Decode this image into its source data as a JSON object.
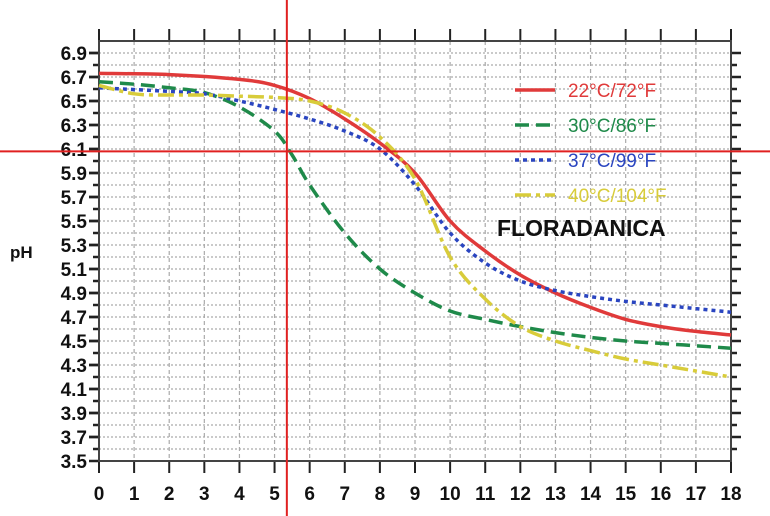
{
  "chart_data": {
    "type": "line",
    "title": "",
    "xlabel": "",
    "ylabel": "pH",
    "xlim": [
      0,
      18
    ],
    "ylim": [
      3.5,
      7.0
    ],
    "x_ticks": [
      0,
      1,
      2,
      3,
      4,
      5,
      6,
      7,
      8,
      9,
      10,
      11,
      12,
      13,
      14,
      15,
      16,
      17,
      18
    ],
    "y_ticks": [
      "3.5",
      "3.7",
      "3.9",
      "4.1",
      "4.3",
      "4.5",
      "4.7",
      "4.9",
      "5.1",
      "5.3",
      "5.5",
      "5.7",
      "5.9",
      "6.1",
      "6.3",
      "6.5",
      "6.7",
      "6.9"
    ],
    "grid": true,
    "legend_position": "top-right",
    "annotation": "FLORADANICA",
    "crosshair": {
      "x": 5.35,
      "y": 6.08,
      "color": "#e02020"
    },
    "series": [
      {
        "name": "22°C/72°F",
        "color": "#e03a3a",
        "style": "solid",
        "x": [
          0,
          2,
          4,
          5,
          6,
          7,
          8,
          9,
          10,
          11,
          12,
          13,
          14,
          15,
          16,
          17,
          18
        ],
        "y": [
          6.73,
          6.72,
          6.68,
          6.63,
          6.52,
          6.35,
          6.15,
          5.9,
          5.5,
          5.25,
          5.05,
          4.9,
          4.78,
          4.68,
          4.62,
          4.58,
          4.55
        ]
      },
      {
        "name": "30°C/86°F",
        "color": "#1f8a4a",
        "style": "dashed",
        "x": [
          0,
          1,
          2,
          3,
          4,
          5,
          5.5,
          6,
          7,
          8,
          9,
          10,
          11,
          12,
          13,
          14,
          15,
          16,
          17,
          18
        ],
        "y": [
          6.66,
          6.64,
          6.61,
          6.57,
          6.45,
          6.25,
          6.05,
          5.8,
          5.4,
          5.1,
          4.9,
          4.75,
          4.68,
          4.62,
          4.57,
          4.53,
          4.5,
          4.48,
          4.46,
          4.44
        ]
      },
      {
        "name": "37°C/99°F",
        "color": "#2a45c0",
        "style": "dotted",
        "x": [
          0,
          2,
          3,
          4,
          5,
          6,
          7,
          8,
          9,
          10,
          11,
          12,
          13,
          14,
          15,
          16,
          17,
          18
        ],
        "y": [
          6.61,
          6.58,
          6.56,
          6.5,
          6.43,
          6.35,
          6.25,
          6.1,
          5.8,
          5.4,
          5.15,
          5.0,
          4.92,
          4.87,
          4.83,
          4.8,
          4.77,
          4.74
        ]
      },
      {
        "name": "40°C/104°F",
        "color": "#d8cc3a",
        "style": "dashdot",
        "x": [
          0,
          1,
          2,
          3,
          4,
          5,
          6,
          7,
          8,
          9,
          10,
          11,
          12,
          13,
          14,
          15,
          16,
          17,
          18
        ],
        "y": [
          6.63,
          6.56,
          6.55,
          6.55,
          6.54,
          6.53,
          6.5,
          6.4,
          6.2,
          5.85,
          5.2,
          4.85,
          4.62,
          4.5,
          4.42,
          4.35,
          4.3,
          4.25,
          4.2
        ]
      }
    ]
  }
}
